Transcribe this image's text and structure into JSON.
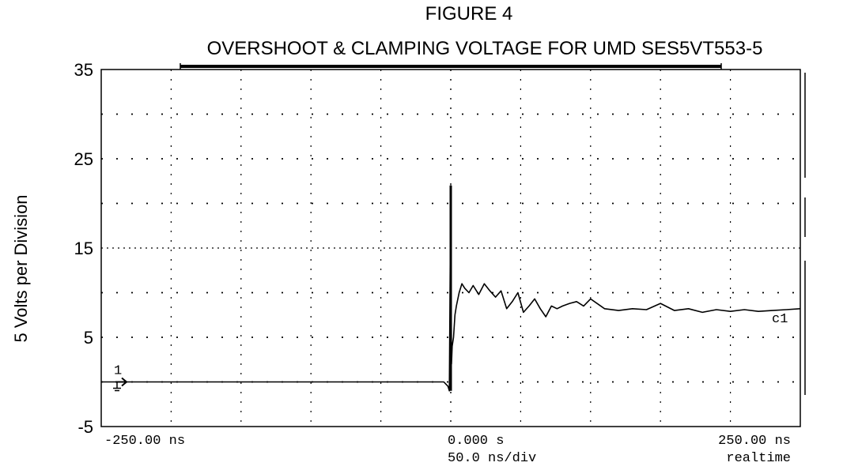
{
  "title": "FIGURE 4",
  "subtitle": "OVERSHOOT & CLAMPING VOLTAGE FOR UMD SES5VT553-5",
  "ylabel": "5 Volts per Division",
  "footer": {
    "left_time": "-250.00 ns",
    "center_time": "0.000  s",
    "right_time": "250.00 ns",
    "timebase": "50.0 ns/div",
    "mode": "realtime"
  },
  "trace_label": "c1",
  "channel_marker": "1",
  "chart_data": {
    "type": "line",
    "title": "FIGURE 4",
    "subtitle": "OVERSHOOT & CLAMPING VOLTAGE FOR UMD SES5VT553-5",
    "ylabel": "5 Volts per Division",
    "xlabel": "",
    "xlim_ns": [
      -250,
      250
    ],
    "ylim": [
      -5,
      35
    ],
    "yticks": [
      -5,
      5,
      15,
      25,
      35
    ],
    "grid": true,
    "series": [
      {
        "name": "c1",
        "x": [
          -250,
          -200,
          -150,
          -100,
          -50,
          -5,
          -2,
          -1,
          0,
          0.5,
          1,
          2,
          3,
          4,
          6,
          8,
          10,
          13,
          16,
          20,
          24,
          28,
          32,
          36,
          40,
          44,
          48,
          52,
          56,
          60,
          64,
          68,
          72,
          76,
          80,
          85,
          90,
          95,
          100,
          110,
          120,
          130,
          140,
          150,
          160,
          170,
          180,
          190,
          200,
          210,
          220,
          230,
          240,
          250
        ],
        "y": [
          0,
          0,
          0,
          0,
          0,
          0,
          -0.5,
          -1,
          22,
          2,
          4,
          5,
          7.5,
          8.5,
          10,
          11,
          10.5,
          10,
          10.8,
          9.8,
          11,
          10.2,
          9.5,
          10.2,
          8.2,
          9,
          10,
          7.8,
          8.5,
          9.3,
          8.2,
          7.3,
          8.5,
          8.2,
          8.5,
          8.8,
          9,
          8.5,
          9.3,
          8.2,
          8.0,
          8.2,
          8.1,
          8.8,
          8.0,
          8.2,
          7.8,
          8.1,
          7.9,
          8.1,
          7.9,
          8.0,
          8.1,
          8.2
        ]
      }
    ],
    "marker_bar": {
      "x_start_ns": -250,
      "x_end_ns": 250
    }
  }
}
